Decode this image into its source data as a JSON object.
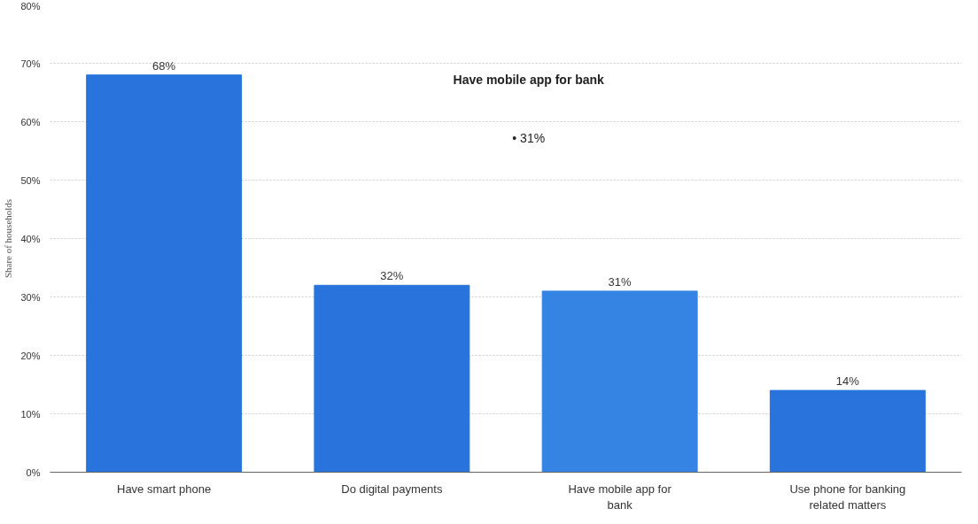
{
  "chart_data": {
    "type": "bar",
    "ylabel": "Share of households",
    "categories": [
      "Have smart phone",
      "Do digital payments",
      "Have mobile app for bank",
      "Use phone for banking related matters"
    ],
    "values": [
      68,
      32,
      31,
      14
    ],
    "colors": [
      "#2874dc",
      "#2874dc",
      "#3584e4",
      "#2874dc"
    ],
    "value_labels": [
      "68%",
      "32%",
      "31%",
      "14%"
    ],
    "ylim": [
      0,
      80
    ],
    "yticks": [
      {
        "value": 0,
        "label": "0%"
      },
      {
        "value": 10,
        "label": "10%"
      },
      {
        "value": 20,
        "label": "20%"
      },
      {
        "value": 30,
        "label": "30%"
      },
      {
        "value": 40,
        "label": "40%"
      },
      {
        "value": 50,
        "label": "50%"
      },
      {
        "value": 60,
        "label": "60%"
      },
      {
        "value": 70,
        "label": "70%"
      },
      {
        "value": 80,
        "label": "80%"
      }
    ],
    "grid": "y",
    "annotations": [
      "Have mobile app for bank",
      "• 31%"
    ]
  }
}
